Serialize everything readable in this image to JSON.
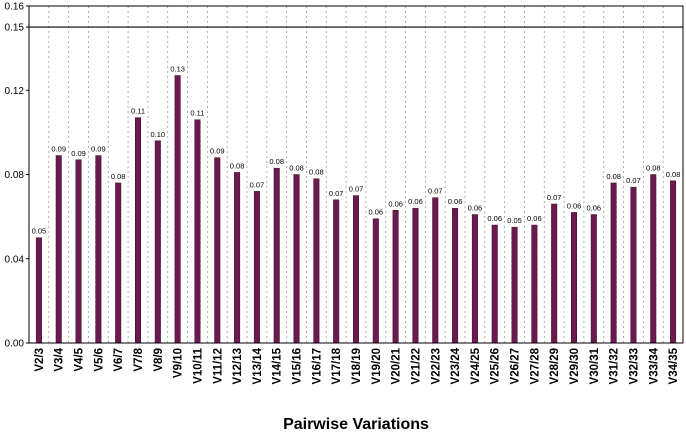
{
  "chart_data": {
    "type": "bar",
    "xlabel": "Pairwise Variations",
    "ylabel": "",
    "ylim": [
      0,
      0.16
    ],
    "y_ticks": [
      "0.00",
      "0.04",
      "0.08",
      "0.12",
      "0.15",
      "0.16"
    ],
    "y_tick_values": [
      0,
      0.04,
      0.08,
      0.12,
      0.15,
      0.16
    ],
    "reference_line": 0.15,
    "grid": "vertical dotted",
    "bar_color": "#6b1a4f",
    "categories": [
      "V2/3",
      "V3/4",
      "V4/5",
      "V5/6",
      "V6/7",
      "V7/8",
      "V8/9",
      "V9/10",
      "V10/11",
      "V11/12",
      "V12/13",
      "V13/14",
      "V14/15",
      "V15/16",
      "V16/17",
      "V17/18",
      "V18/19",
      "V19/20",
      "V20/21",
      "V21/22",
      "V22/23",
      "V23/24",
      "V24/25",
      "V25/26",
      "V26/27",
      "V27/28",
      "V28/29",
      "V29/30",
      "V30/31",
      "V31/32",
      "V32/33",
      "V33/34",
      "V34/35"
    ],
    "values": [
      0.05,
      0.089,
      0.087,
      0.089,
      0.076,
      0.107,
      0.096,
      0.127,
      0.106,
      0.088,
      0.081,
      0.072,
      0.083,
      0.08,
      0.078,
      0.068,
      0.07,
      0.059,
      0.063,
      0.064,
      0.069,
      0.064,
      0.061,
      0.056,
      0.055,
      0.056,
      0.066,
      0.062,
      0.061,
      0.076,
      0.074,
      0.08,
      0.077
    ],
    "data_labels": [
      "0.05",
      "0.09",
      "0.09",
      "0.09",
      "0.08",
      "0.11",
      "0.10",
      "0.13",
      "0.11",
      "0.09",
      "0.08",
      "0.07",
      "0.08",
      "0.08",
      "0.08",
      "0.07",
      "0.07",
      "0.06",
      "0.06",
      "0.06",
      "0.07",
      "0.06",
      "0.06",
      "0.06",
      "0.05",
      "0.06",
      "0.07",
      "0.06",
      "0.06",
      "0.08",
      "0.07",
      "0.08",
      "0.08"
    ]
  }
}
